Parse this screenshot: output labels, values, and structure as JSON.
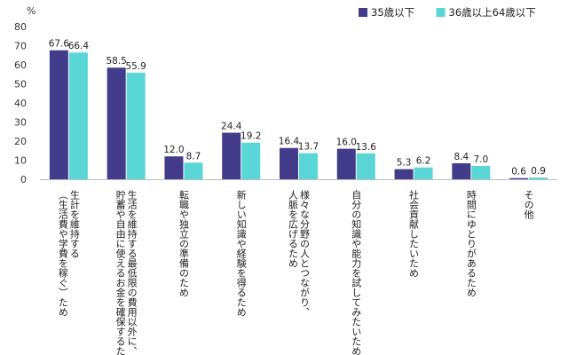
{
  "chart_data": {
    "type": "bar",
    "unit_label": "%",
    "ylim": [
      0,
      80
    ],
    "yticks": [
      0,
      10,
      20,
      30,
      40,
      50,
      60,
      70,
      80
    ],
    "categories": [
      [
        "（生活費や学費を稼ぐ）ため",
        "生計を維持する"
      ],
      [
        "貯蓄や自由に使えるお金を確保するため",
        "生活を維持する最低限の費用以外に、"
      ],
      [
        "転職や独立の準備のため"
      ],
      [
        "新しい知識や経験を得るため"
      ],
      [
        "人脈を広げるため",
        "様々な分野の人とつながり、"
      ],
      [
        "自分の知識や能力を試してみたいため"
      ],
      [
        "社会貢献したいため"
      ],
      [
        "時間にゆとりがあるため"
      ],
      [
        "その他"
      ]
    ],
    "series": [
      {
        "name": "35歳以下",
        "color": "#423C8B",
        "values": [
          67.6,
          58.5,
          12.0,
          24.4,
          16.4,
          16.0,
          5.3,
          8.4,
          0.6
        ]
      },
      {
        "name": "36歳以上64歳以下",
        "color": "#5AD6D6",
        "values": [
          66.4,
          55.9,
          8.7,
          19.2,
          13.7,
          13.6,
          6.2,
          7.0,
          0.9
        ]
      }
    ],
    "grid": false,
    "legend_position": "top-right"
  }
}
